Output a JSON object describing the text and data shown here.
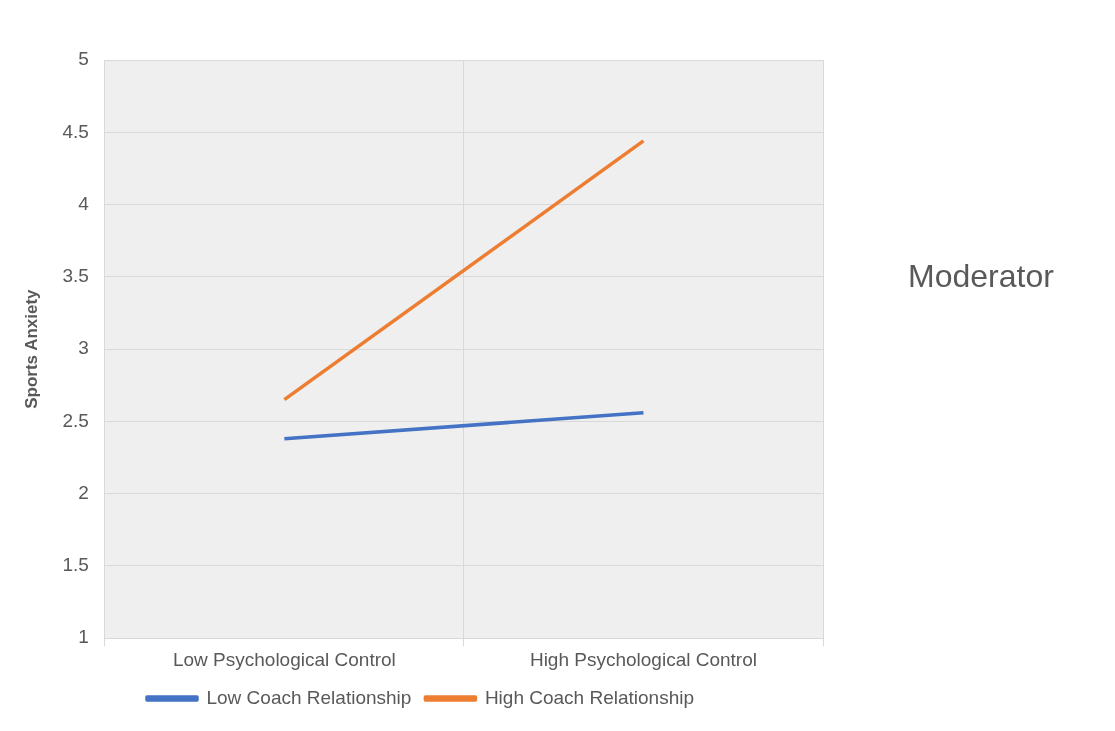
{
  "chart_data": {
    "type": "line",
    "categories": [
      "Low Psychological Control",
      "High Psychological Control"
    ],
    "series": [
      {
        "name": "Low Coach Relationship",
        "color": "#4472c4",
        "values": [
          2.38,
          2.56
        ]
      },
      {
        "name": "High Coach Relationship",
        "color": "#ed7d31",
        "values": [
          2.65,
          4.44
        ]
      }
    ],
    "ylabel": "Sports Anxiety",
    "ylim": [
      1,
      5
    ],
    "yticks": [
      1,
      1.5,
      2,
      2.5,
      3,
      3.5,
      4,
      4.5,
      5
    ],
    "grid": true,
    "legend": "bottom",
    "marker": "none",
    "line_style": "solid",
    "annotations": [
      "Moderator"
    ]
  }
}
